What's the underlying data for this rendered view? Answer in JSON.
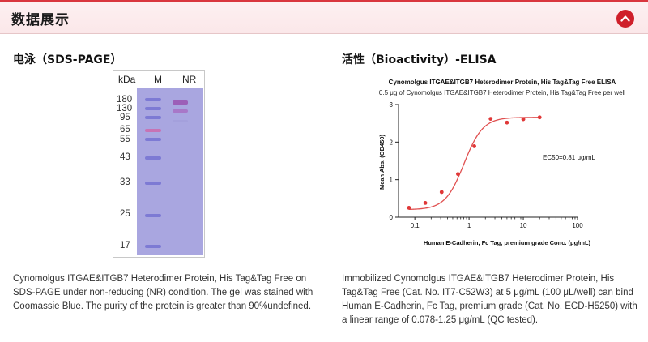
{
  "header": {
    "title": "数据展示"
  },
  "sds_page": {
    "title": "电泳（SDS-PAGE）",
    "lane_labels": {
      "kda": "kDa",
      "marker": "M",
      "nr": "NR"
    },
    "mw_markers": [
      "180",
      "130",
      "95",
      "65",
      "55",
      "43",
      "33",
      "25",
      "17"
    ],
    "caption": "Cynomolgus ITGAE&ITGB7 Heterodimer Protein, His Tag&Tag Free on SDS-PAGE under non-reducing (NR) condition. The gel was stained with Coomassie Blue. The purity of the protein is greater than 90%undefined."
  },
  "elisa": {
    "title": "活性（Bioactivity）-ELISA",
    "caption": "Immobilized Cynomolgus ITGAE&ITGB7 Heterodimer Protein, His Tag&Tag Free (Cat. No. IT7-C52W3) at 5 μg/mL (100 μL/well) can bind Human E-Cadherin, Fc Tag, premium grade (Cat. No. ECD-H5250) with a linear range of 0.078-1.25 μg/mL (QC tested)."
  },
  "chart_data": {
    "type": "scatter",
    "title": "Cynomolgus ITGAE&ITGB7 Heterodimer Protein, His Tag&Tag Free ELISA",
    "subtitle": "0.5 μg of Cynomolgus ITGAE&ITGB7 Heterodimer Protein, His Tag&Tag Free per well",
    "xlabel": "Human E-Cadherin, Fc Tag, premium grade Conc. (μg/mL)",
    "ylabel": "Mean Abs. (OD450)",
    "x_scale": "log",
    "xlim": [
      0.05,
      100
    ],
    "ylim": [
      0,
      3
    ],
    "x_ticks": [
      0.1,
      1,
      10,
      100
    ],
    "x_tick_labels": [
      "0.1",
      "1",
      "10",
      "100"
    ],
    "y_ticks": [
      0,
      1,
      2,
      3
    ],
    "y_tick_labels": [
      "0",
      "1",
      "2",
      "3"
    ],
    "series": [
      {
        "x": [
          0.078,
          0.156,
          0.3125,
          0.625,
          1.25,
          2.5,
          5,
          10,
          20
        ],
        "y": [
          0.25,
          0.38,
          0.67,
          1.15,
          1.89,
          2.62,
          2.52,
          2.61,
          2.66
        ]
      }
    ],
    "fit_curve": {
      "bottom": 0.2,
      "top": 2.66,
      "ec50": 0.81,
      "hill": 2.5
    },
    "annotation": "EC50=0.81 μg/mL",
    "colors": {
      "point": "#e03838",
      "curve": "#e05050",
      "axis": "#222222"
    },
    "grid": false
  },
  "colors": {
    "accent": "#cf1f2a",
    "header_bg": "#fbe9eb",
    "gel": "#a9a6e0",
    "ladder": "#7d7ad4"
  }
}
